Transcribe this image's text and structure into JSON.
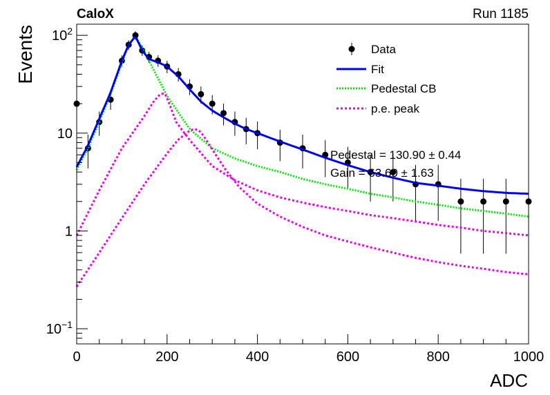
{
  "header": {
    "label_left": "CaloX",
    "label_right": "Run 1185"
  },
  "colors": {
    "data": "#000000",
    "fit": "#0000ee",
    "pedestal": "#00ee00",
    "pe_peak": "#ee00ee"
  },
  "chart_data": {
    "type": "scatter",
    "xlabel": "ADC",
    "ylabel": "Events",
    "xlim": [
      0,
      1000
    ],
    "ylim": [
      0.07,
      130
    ],
    "yscale": "log",
    "x_ticks": [
      "0",
      "200",
      "400",
      "600",
      "800",
      "1000"
    ],
    "y_ticks": [
      {
        "value": 0.1,
        "base": "10",
        "exp": "−1"
      },
      {
        "value": 1,
        "base": "1",
        "exp": ""
      },
      {
        "value": 10,
        "base": "10",
        "exp": ""
      },
      {
        "value": 100,
        "base": "10",
        "exp": "2"
      }
    ],
    "grid": false,
    "legend_position": "top-right",
    "legend": [
      {
        "label": "Data",
        "kind": "marker"
      },
      {
        "label": "Fit",
        "kind": "solid"
      },
      {
        "label": "Pedestal CB",
        "kind": "dotted-green"
      },
      {
        "label": "p.e. peak",
        "kind": "dotted-magenta"
      }
    ],
    "annotations": [
      "Pedestal = 130.90 ± 0.44",
      "Gain = 63.60 ± 1.63"
    ],
    "series": [
      {
        "name": "Data",
        "x": [
          0,
          25,
          50,
          75,
          100,
          115,
          130,
          145,
          160,
          180,
          200,
          225,
          250,
          275,
          300,
          325,
          350,
          375,
          400,
          450,
          500,
          550,
          600,
          650,
          700,
          750,
          800,
          850,
          900,
          950,
          1000
        ],
        "y": [
          20,
          7,
          13,
          22,
          55,
          80,
          100,
          70,
          60,
          55,
          48,
          40,
          30,
          25,
          20,
          16,
          13,
          11,
          10,
          8,
          7,
          6,
          5,
          4,
          4,
          3,
          3,
          2,
          2,
          2,
          2
        ]
      },
      {
        "name": "Fit",
        "x": [
          0,
          25,
          50,
          75,
          100,
          115,
          130,
          145,
          160,
          180,
          200,
          225,
          250,
          275,
          300,
          325,
          350,
          375,
          400,
          450,
          500,
          550,
          600,
          650,
          700,
          750,
          800,
          850,
          900,
          950,
          1000
        ],
        "y": [
          4.5,
          7.5,
          14,
          26,
          55,
          80,
          98,
          70,
          57,
          53,
          48,
          38,
          28,
          21,
          17,
          14.5,
          12.5,
          11,
          10,
          8.2,
          6.8,
          5.6,
          4.7,
          4,
          3.5,
          3.1,
          2.9,
          2.7,
          2.55,
          2.45,
          2.4
        ]
      },
      {
        "name": "Pedestal CB",
        "x": [
          0,
          25,
          50,
          75,
          100,
          115,
          130,
          145,
          160,
          200,
          250,
          300,
          350,
          400,
          450,
          500,
          550,
          600,
          650,
          700,
          750,
          800,
          850,
          900,
          950,
          1000
        ],
        "y": [
          4.2,
          7,
          13,
          25,
          52,
          80,
          97,
          75,
          55,
          24,
          11,
          7,
          5.5,
          4.6,
          4,
          3.4,
          3,
          2.7,
          2.4,
          2.2,
          2,
          1.85,
          1.7,
          1.6,
          1.5,
          1.4
        ]
      },
      {
        "name": "p.e. peak",
        "x": [
          0,
          50,
          100,
          150,
          170,
          185,
          195,
          205,
          220,
          250,
          300,
          350,
          400,
          450,
          500,
          550,
          600,
          650,
          700,
          750,
          800,
          850,
          900,
          950,
          1000
        ],
        "y": [
          0.9,
          2.6,
          7,
          15,
          21,
          25,
          25.5,
          20,
          13,
          8.5,
          4.6,
          3.3,
          2.6,
          2.2,
          1.95,
          1.75,
          1.6,
          1.45,
          1.35,
          1.25,
          1.15,
          1.08,
          1.0,
          0.95,
          0.9
        ]
      },
      {
        "name": "p.e. peak",
        "x": [
          0,
          50,
          100,
          150,
          200,
          225,
          250,
          260,
          270,
          280,
          300,
          330,
          360,
          400,
          450,
          500,
          550,
          600,
          650,
          700,
          750,
          800,
          850,
          900,
          950,
          1000
        ],
        "y": [
          0.27,
          0.6,
          1.35,
          3,
          6.2,
          8.6,
          10.6,
          11,
          10.7,
          9.5,
          6.8,
          4.2,
          2.8,
          1.9,
          1.4,
          1.1,
          0.9,
          0.78,
          0.68,
          0.6,
          0.53,
          0.48,
          0.44,
          0.41,
          0.38,
          0.36
        ]
      }
    ]
  }
}
